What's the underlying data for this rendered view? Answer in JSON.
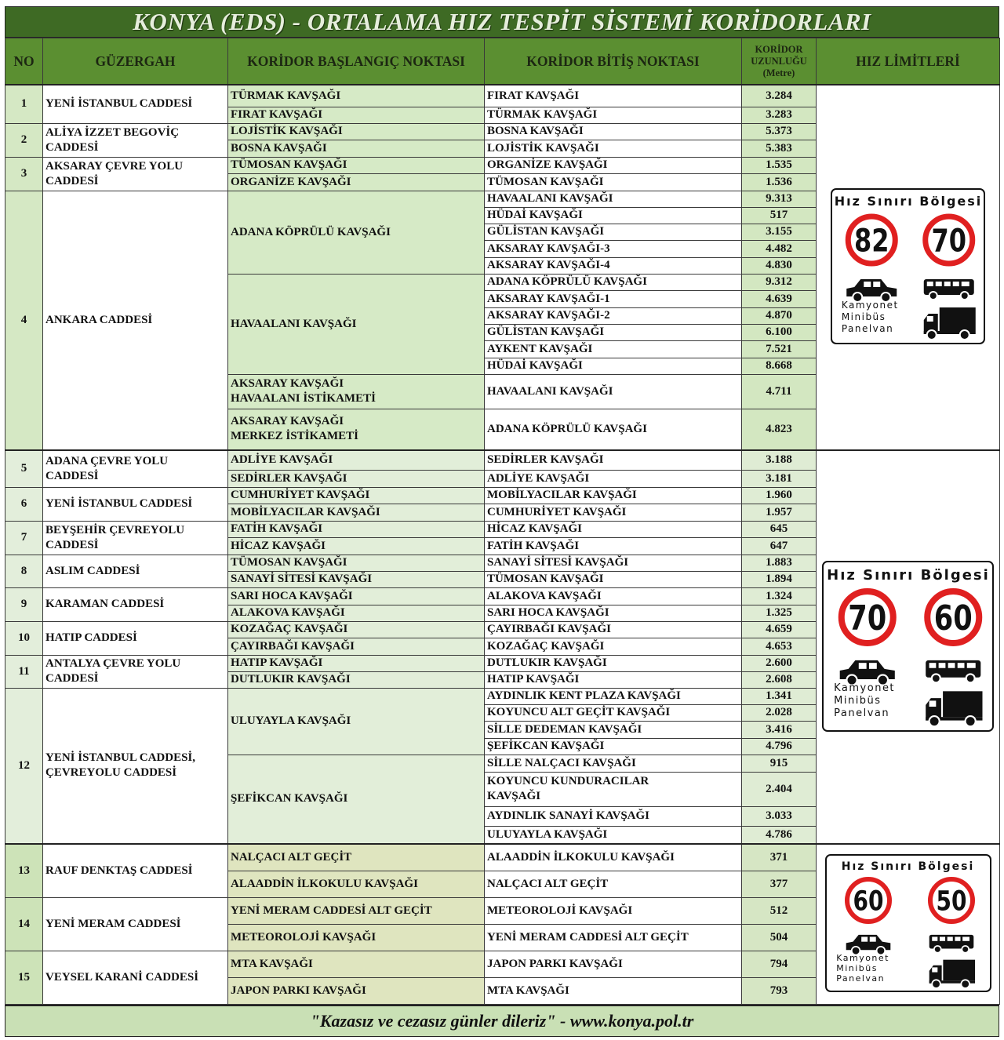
{
  "title": "KONYA (EDS) - ORTALAMA HIZ TESPİT SİSTEMİ KORİDORLARI",
  "headers": {
    "no": "NO",
    "route": "GÜZERGAH",
    "start": "KORİDOR BAŞLANGIÇ NOKTASI",
    "end": "KORİDOR BİTİŞ NOKTASI",
    "length": "KORİDOR\nUZUNLUĞU\n(Metre)",
    "limits": "HIZ LİMİTLERİ"
  },
  "sign_labels": {
    "title": "Hız Sınırı Bölgesi",
    "vehicle_text": "Kamyonet\nMinibüs\nPanelvan"
  },
  "sections": [
    {
      "speed_limits": {
        "car": 82,
        "heavy": 70
      },
      "routes": [
        {
          "no": "1",
          "name": "YENİ İSTANBUL CADDESİ",
          "starts": [
            {
              "name": "TÜRMAK KAVŞAĞI",
              "ends": [
                {
                  "name": "FIRAT KAVŞAĞI",
                  "length": "3.284"
                }
              ]
            },
            {
              "name": "FIRAT KAVŞAĞI",
              "ends": [
                {
                  "name": "TÜRMAK KAVŞAĞI",
                  "length": "3.283"
                }
              ]
            }
          ]
        },
        {
          "no": "2",
          "name": "ALİYA İZZET BEGOVİÇ\nCADDESİ",
          "starts": [
            {
              "name": "LOJİSTİK KAVŞAĞI",
              "ends": [
                {
                  "name": "BOSNA KAVŞAĞI",
                  "length": "5.373"
                }
              ]
            },
            {
              "name": "BOSNA KAVŞAĞI",
              "ends": [
                {
                  "name": "LOJİSTİK KAVŞAĞI",
                  "length": "5.383"
                }
              ]
            }
          ]
        },
        {
          "no": "3",
          "name": "AKSARAY ÇEVRE YOLU\nCADDESİ",
          "starts": [
            {
              "name": "TÜMOSAN KAVŞAĞI",
              "ends": [
                {
                  "name": "ORGANİZE KAVŞAĞI",
                  "length": "1.535"
                }
              ]
            },
            {
              "name": "ORGANİZE KAVŞAĞI",
              "ends": [
                {
                  "name": "TÜMOSAN KAVŞAĞI",
                  "length": "1.536"
                }
              ]
            }
          ]
        },
        {
          "no": "4",
          "name": "ANKARA CADDESİ",
          "starts": [
            {
              "name": "ADANA KÖPRÜLÜ KAVŞAĞI",
              "ends": [
                {
                  "name": "HAVAALANI KAVŞAĞI",
                  "length": "9.313"
                },
                {
                  "name": "HÜDAİ KAVŞAĞI",
                  "length": "517"
                },
                {
                  "name": "GÜLİSTAN KAVŞAĞI",
                  "length": "3.155"
                },
                {
                  "name": "AKSARAY KAVŞAĞI-3",
                  "length": "4.482"
                },
                {
                  "name": "AKSARAY KAVŞAĞI-4",
                  "length": "4.830"
                }
              ]
            },
            {
              "name": "HAVAALANI KAVŞAĞI",
              "ends": [
                {
                  "name": "ADANA KÖPRÜLÜ KAVŞAĞI",
                  "length": "9.312"
                },
                {
                  "name": "AKSARAY KAVŞAĞI-1",
                  "length": "4.639"
                },
                {
                  "name": "AKSARAY KAVŞAĞI-2",
                  "length": "4.870"
                },
                {
                  "name": "GÜLİSTAN KAVŞAĞI",
                  "length": "6.100"
                },
                {
                  "name": "AYKENT KAVŞAĞI",
                  "length": "7.521"
                },
                {
                  "name": "HÜDAİ KAVŞAĞI",
                  "length": "8.668"
                }
              ]
            },
            {
              "name": "AKSARAY KAVŞAĞI\nHAVAALANI İSTİKAMETİ",
              "ends": [
                {
                  "name": "HAVAALANI KAVŞAĞI",
                  "length": "4.711"
                }
              ]
            },
            {
              "name": "AKSARAY KAVŞAĞI\nMERKEZ İSTİKAMETİ",
              "ends": [
                {
                  "name": "ADANA KÖPRÜLÜ KAVŞAĞI",
                  "length": "4.823"
                }
              ]
            }
          ]
        }
      ]
    },
    {
      "speed_limits": {
        "car": 70,
        "heavy": 60
      },
      "routes": [
        {
          "no": "5",
          "name": "ADANA ÇEVRE YOLU\nCADDESİ",
          "starts": [
            {
              "name": "ADLİYE KAVŞAĞI",
              "ends": [
                {
                  "name": "SEDİRLER KAVŞAĞI",
                  "length": "3.188"
                }
              ]
            },
            {
              "name": "SEDİRLER KAVŞAĞI",
              "ends": [
                {
                  "name": "ADLİYE KAVŞAĞI",
                  "length": "3.181"
                }
              ]
            }
          ]
        },
        {
          "no": "6",
          "name": "YENİ İSTANBUL CADDESİ",
          "starts": [
            {
              "name": "CUMHURİYET KAVŞAĞI",
              "ends": [
                {
                  "name": "MOBİLYACILAR KAVŞAĞI",
                  "length": "1.960"
                }
              ]
            },
            {
              "name": "MOBİLYACILAR KAVŞAĞI",
              "ends": [
                {
                  "name": "CUMHURİYET KAVŞAĞI",
                  "length": "1.957"
                }
              ]
            }
          ]
        },
        {
          "no": "7",
          "name": "BEYŞEHİR ÇEVREYOLU\nCADDESİ",
          "starts": [
            {
              "name": "FATİH KAVŞAĞI",
              "ends": [
                {
                  "name": "HİCAZ KAVŞAĞI",
                  "length": "645"
                }
              ]
            },
            {
              "name": "HİCAZ KAVŞAĞI",
              "ends": [
                {
                  "name": "FATİH KAVŞAĞI",
                  "length": "647"
                }
              ]
            }
          ]
        },
        {
          "no": "8",
          "name": "ASLIM CADDESİ",
          "starts": [
            {
              "name": "TÜMOSAN KAVŞAĞI",
              "ends": [
                {
                  "name": "SANAYİ SİTESİ KAVŞAĞI",
                  "length": "1.883"
                }
              ]
            },
            {
              "name": "SANAYİ SİTESİ KAVŞAĞI",
              "ends": [
                {
                  "name": "TÜMOSAN KAVŞAĞI",
                  "length": "1.894"
                }
              ]
            }
          ]
        },
        {
          "no": "9",
          "name": "KARAMAN CADDESİ",
          "starts": [
            {
              "name": "SARI HOCA KAVŞAĞI",
              "ends": [
                {
                  "name": "ALAKOVA KAVŞAĞI",
                  "length": "1.324"
                }
              ]
            },
            {
              "name": "ALAKOVA KAVŞAĞI",
              "ends": [
                {
                  "name": "SARI HOCA KAVŞAĞI",
                  "length": "1.325"
                }
              ]
            }
          ]
        },
        {
          "no": "10",
          "name": "HATIP CADDESİ",
          "starts": [
            {
              "name": "KOZAĞAÇ KAVŞAĞI",
              "ends": [
                {
                  "name": "ÇAYIRBAĞI KAVŞAĞI",
                  "length": "4.659"
                }
              ]
            },
            {
              "name": "ÇAYIRBAĞI KAVŞAĞI",
              "ends": [
                {
                  "name": "KOZAĞAÇ KAVŞAĞI",
                  "length": "4.653"
                }
              ]
            }
          ]
        },
        {
          "no": "11",
          "name": "ANTALYA ÇEVRE YOLU\nCADDESİ",
          "starts": [
            {
              "name": "HATIP KAVŞAĞI",
              "ends": [
                {
                  "name": "DUTLUKIR KAVŞAĞI",
                  "length": "2.600"
                }
              ]
            },
            {
              "name": "DUTLUKIR KAVŞAĞI",
              "ends": [
                {
                  "name": "HATIP KAVŞAĞI",
                  "length": "2.608"
                }
              ]
            }
          ]
        },
        {
          "no": "12",
          "name": "YENİ İSTANBUL CADDESİ,\nÇEVREYOLU CADDESİ",
          "starts": [
            {
              "name": "ULUYAYLA KAVŞAĞI",
              "ends": [
                {
                  "name": "AYDINLIK KENT PLAZA KAVŞAĞI",
                  "length": "1.341"
                },
                {
                  "name": "KOYUNCU ALT GEÇİT KAVŞAĞI",
                  "length": "2.028"
                },
                {
                  "name": "SİLLE DEDEMAN KAVŞAĞI",
                  "length": "3.416"
                },
                {
                  "name": "ŞEFİKCAN KAVŞAĞI",
                  "length": "4.796"
                }
              ]
            },
            {
              "name": "ŞEFİKCAN KAVŞAĞI",
              "ends": [
                {
                  "name": "SİLLE NALÇACI KAVŞAĞI",
                  "length": "915"
                },
                {
                  "name": "KOYUNCU KUNDURACILAR\nKAVŞAĞI",
                  "length": "2.404"
                },
                {
                  "name": "AYDINLIK SANAYİ KAVŞAĞI",
                  "length": "3.033"
                },
                {
                  "name": "ULUYAYLA KAVŞAĞI",
                  "length": "4.786"
                }
              ]
            }
          ]
        }
      ]
    },
    {
      "speed_limits": {
        "car": 60,
        "heavy": 50
      },
      "routes": [
        {
          "no": "13",
          "name": "RAUF DENKTAŞ CADDESİ",
          "starts": [
            {
              "name": "NALÇACI ALT GEÇİT",
              "ends": [
                {
                  "name": "ALAADDİN İLKOKULU KAVŞAĞI",
                  "length": "371"
                }
              ]
            },
            {
              "name": "ALAADDİN İLKOKULU KAVŞAĞI",
              "ends": [
                {
                  "name": "NALÇACI ALT GEÇİT",
                  "length": "377"
                }
              ]
            }
          ]
        },
        {
          "no": "14",
          "name": "YENİ MERAM CADDESİ",
          "starts": [
            {
              "name": "YENİ MERAM CADDESİ ALT GEÇİT",
              "ends": [
                {
                  "name": "METEOROLOJİ KAVŞAĞI",
                  "length": "512"
                }
              ]
            },
            {
              "name": "METEOROLOJİ KAVŞAĞI",
              "ends": [
                {
                  "name": "YENİ MERAM CADDESİ ALT GEÇİT",
                  "length": "504"
                }
              ]
            }
          ]
        },
        {
          "no": "15",
          "name": "VEYSEL KARANİ CADDESİ",
          "starts": [
            {
              "name": "MTA KAVŞAĞI",
              "ends": [
                {
                  "name": "JAPON PARKI KAVŞAĞI",
                  "length": "794"
                }
              ]
            },
            {
              "name": "JAPON PARKI KAVŞAĞI",
              "ends": [
                {
                  "name": "MTA KAVŞAĞI",
                  "length": "793"
                }
              ]
            }
          ]
        }
      ]
    }
  ],
  "footer": "\"Kazasız ve cezasız günler dileriz\"  -  www.konya.pol.tr"
}
